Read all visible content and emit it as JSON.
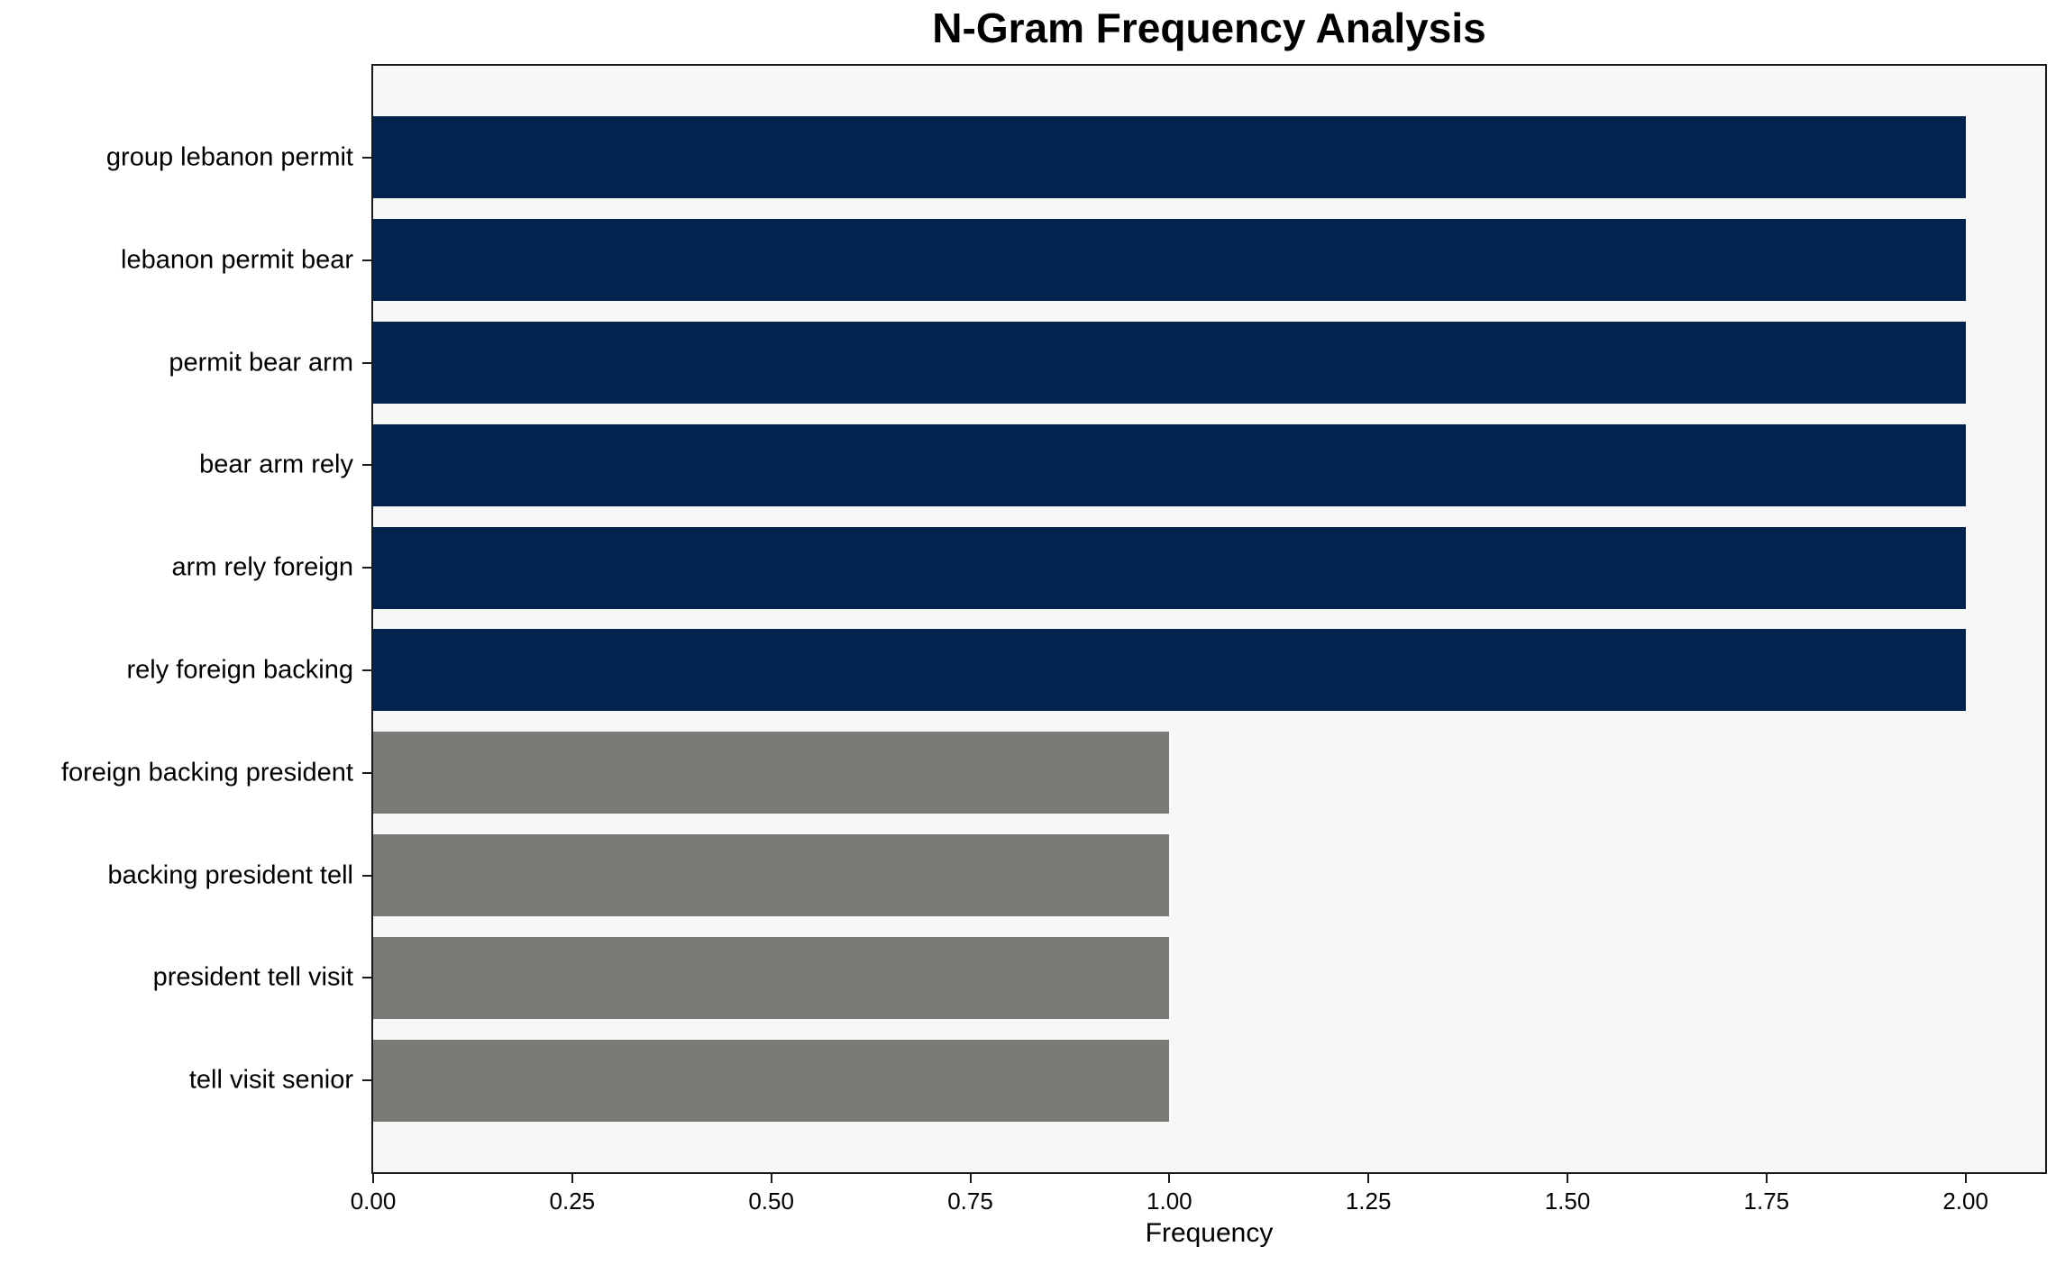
{
  "chart_data": {
    "type": "bar",
    "orientation": "horizontal",
    "title": "N-Gram Frequency Analysis",
    "xlabel": "Frequency",
    "ylabel": "",
    "categories": [
      "group lebanon permit",
      "lebanon permit bear",
      "permit bear arm",
      "bear arm rely",
      "arm rely foreign",
      "rely foreign backing",
      "foreign backing president",
      "backing president tell",
      "president tell visit",
      "tell visit senior"
    ],
    "values": [
      2,
      2,
      2,
      2,
      2,
      2,
      1,
      1,
      1,
      1
    ],
    "bar_colors": [
      "#02234e",
      "#02234e",
      "#02234e",
      "#02234e",
      "#02234e",
      "#02234e",
      "#7b7a77",
      "#7b7a77",
      "#7b7a77",
      "#7b7a77"
    ],
    "x_ticks": [
      0,
      0.25,
      0.5,
      0.75,
      1,
      1.25,
      1.5,
      1.75,
      2
    ],
    "x_tick_labels": [
      "0.00",
      "0.25",
      "0.50",
      "0.75",
      "1.00",
      "1.25",
      "1.50",
      "1.75",
      "2.00"
    ],
    "xlim": [
      0,
      2.1
    ],
    "grid": false,
    "legend": null,
    "plot_background": "#f7f7f7",
    "figure_background": "#ffffff",
    "axis_color": "#1a1a1a"
  }
}
